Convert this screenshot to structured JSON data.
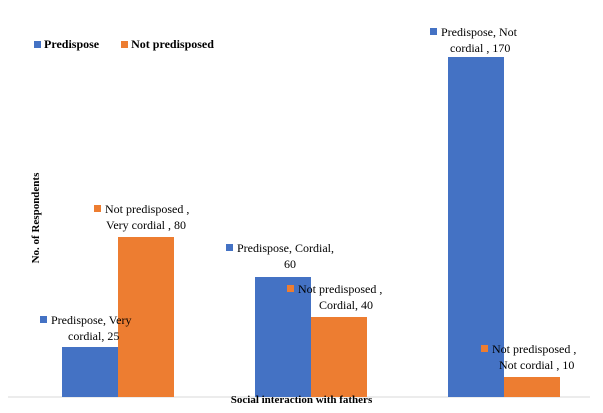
{
  "chart_data": {
    "type": "bar",
    "title": "",
    "xlabel": "Social interaction with fathers",
    "ylabel": "No. of Respondents",
    "categories": [
      "Very cordial",
      "Cordial",
      "Not cordial"
    ],
    "series": [
      {
        "name": "Predispose",
        "color": "#4472C4",
        "values": [
          25,
          60,
          170
        ]
      },
      {
        "name": "Not predisposed",
        "color": "#ED7D31",
        "values": [
          80,
          40,
          10
        ]
      }
    ],
    "ylim": [
      0,
      190
    ],
    "grid": false,
    "legend": "top-left",
    "data_labels": [
      [
        "Predispose, Very",
        "cordial, 25"
      ],
      [
        "Not predisposed ,",
        "Very cordial , 80"
      ],
      [
        "Predispose, Cordial,",
        "60"
      ],
      [
        "Not predisposed ,",
        "Cordial, 40"
      ],
      [
        "Predispose, Not",
        "cordial , 170"
      ],
      [
        "Not predisposed ,",
        "Not cordial , 10"
      ]
    ]
  }
}
